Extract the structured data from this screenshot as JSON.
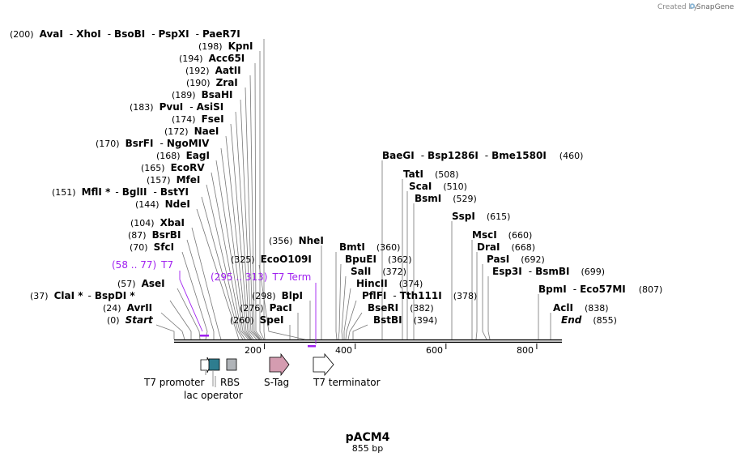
{
  "credit": {
    "prefix": "Created by",
    "brand": "SnapGene"
  },
  "plasmid": {
    "name": "pACM4",
    "length_label": "855 bp",
    "length": 855
  },
  "scale_ticks": [
    "200",
    "400",
    "600",
    "800"
  ],
  "sites": [
    {
      "pos_label": "(200)",
      "names": [
        "AvaI",
        "XhoI",
        "BsoBI",
        "PspXI",
        "PaeR7I"
      ]
    },
    {
      "pos_label": "(198)",
      "names": [
        "KpnI"
      ]
    },
    {
      "pos_label": "(194)",
      "names": [
        "Acc65I"
      ]
    },
    {
      "pos_label": "(192)",
      "names": [
        "AatII"
      ]
    },
    {
      "pos_label": "(190)",
      "names": [
        "ZraI"
      ]
    },
    {
      "pos_label": "(189)",
      "names": [
        "BsaHI"
      ]
    },
    {
      "pos_label": "(183)",
      "names": [
        "PvuI",
        "AsiSI"
      ]
    },
    {
      "pos_label": "(174)",
      "names": [
        "FseI"
      ]
    },
    {
      "pos_label": "(172)",
      "names": [
        "NaeI"
      ]
    },
    {
      "pos_label": "(170)",
      "names": [
        "BsrFI",
        "NgoMIV"
      ]
    },
    {
      "pos_label": "(168)",
      "names": [
        "EagI"
      ]
    },
    {
      "pos_label": "(165)",
      "names": [
        "EcoRV"
      ]
    },
    {
      "pos_label": "(157)",
      "names": [
        "MfeI"
      ]
    },
    {
      "pos_label": "(151)",
      "names": [
        "MflI *",
        "BglII",
        "BstYI"
      ]
    },
    {
      "pos_label": "(144)",
      "names": [
        "NdeI"
      ]
    },
    {
      "pos_label": "(104)",
      "names": [
        "XbaI"
      ]
    },
    {
      "pos_label": "(87)",
      "names": [
        "BsrBI"
      ]
    },
    {
      "pos_label": "(70)",
      "names": [
        "SfcI"
      ]
    },
    {
      "pos_label": "(57)",
      "names": [
        "AseI"
      ]
    },
    {
      "pos_label": "(37)",
      "names": [
        "ClaI *",
        "BspDI *"
      ]
    },
    {
      "pos_label": "(24)",
      "names": [
        "AvrII"
      ]
    },
    {
      "pos_label": "(0)",
      "names": [
        "Start"
      ]
    },
    {
      "pos_label": "(356)",
      "names": [
        "NheI"
      ]
    },
    {
      "pos_label": "(325)",
      "names": [
        "EcoO109I"
      ]
    },
    {
      "pos_label": "(298)",
      "names": [
        "BlpI"
      ]
    },
    {
      "pos_label": "(276)",
      "names": [
        "PacI"
      ]
    },
    {
      "pos_label": "(260)",
      "names": [
        "SpeI"
      ]
    },
    {
      "pos_label": "(460)",
      "names": [
        "BaeGI",
        "Bsp1286I",
        "Bme1580I"
      ]
    },
    {
      "pos_label": "(508)",
      "names": [
        "TatI"
      ]
    },
    {
      "pos_label": "(510)",
      "names": [
        "ScaI"
      ]
    },
    {
      "pos_label": "(529)",
      "names": [
        "BsmI"
      ]
    },
    {
      "pos_label": "(615)",
      "names": [
        "SspI"
      ]
    },
    {
      "pos_label": "(360)",
      "names": [
        "BmtI"
      ]
    },
    {
      "pos_label": "(362)",
      "names": [
        "BpuEI"
      ]
    },
    {
      "pos_label": "(372)",
      "names": [
        "SalI"
      ]
    },
    {
      "pos_label": "(374)",
      "names": [
        "HincII"
      ]
    },
    {
      "pos_label": "(378)",
      "names": [
        "PflFI",
        "Tth111I"
      ]
    },
    {
      "pos_label": "(382)",
      "names": [
        "BseRI"
      ]
    },
    {
      "pos_label": "(394)",
      "names": [
        "BstBI"
      ]
    },
    {
      "pos_label": "(660)",
      "names": [
        "MscI"
      ]
    },
    {
      "pos_label": "(668)",
      "names": [
        "DraI"
      ]
    },
    {
      "pos_label": "(692)",
      "names": [
        "PasI"
      ]
    },
    {
      "pos_label": "(699)",
      "names": [
        "Esp3I",
        "BsmBI"
      ]
    },
    {
      "pos_label": "(807)",
      "names": [
        "BpmI",
        "Eco57MI"
      ]
    },
    {
      "pos_label": "(838)",
      "names": [
        "AclI"
      ]
    },
    {
      "pos_label": "(855)",
      "names": [
        "End"
      ]
    }
  ],
  "primers": [
    {
      "range_label": "(58 .. 77)",
      "name": "T7"
    },
    {
      "range_label": "(295 .. 313)",
      "name": "T7 Term"
    }
  ],
  "features": [
    {
      "name": "T7 promoter",
      "color": "#ffffff"
    },
    {
      "name": "lac operator",
      "color": "#2e7d8f"
    },
    {
      "name": "RBS",
      "color": "#b0b4b8"
    },
    {
      "name": "S-Tag",
      "color": "#d49cb0"
    },
    {
      "name": "T7 terminator",
      "color": "#ffffff"
    }
  ]
}
